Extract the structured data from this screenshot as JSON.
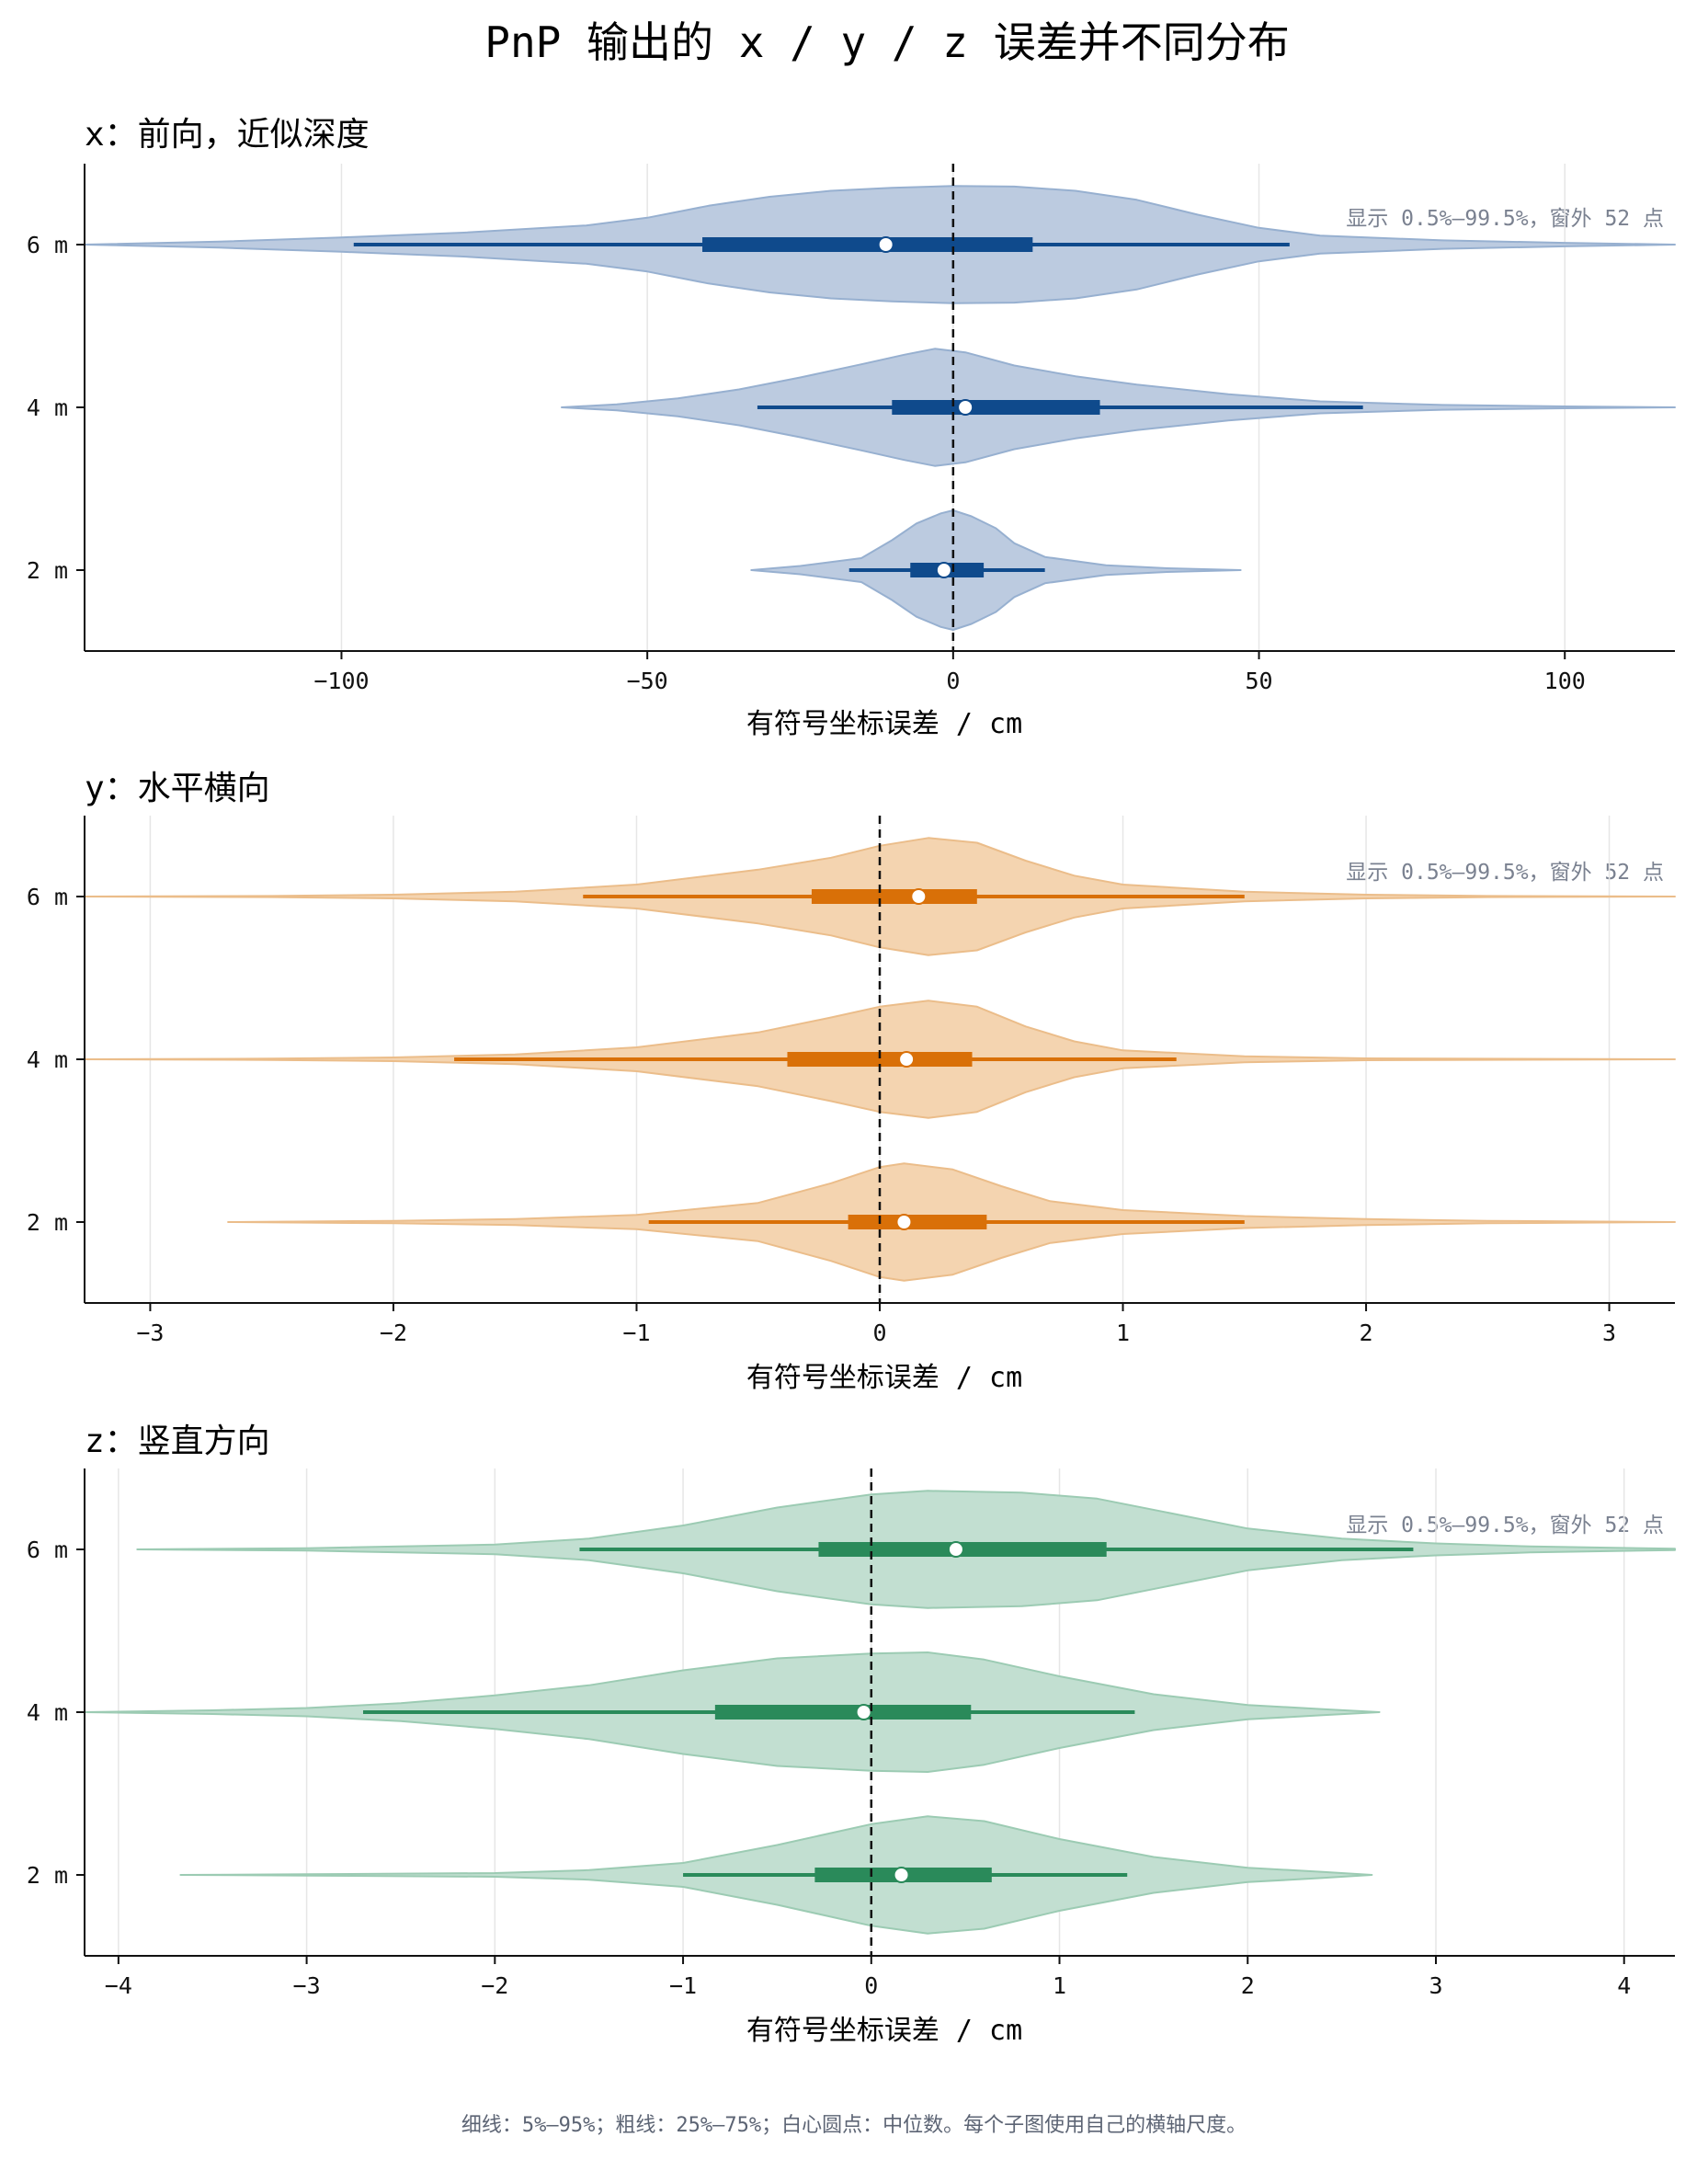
{
  "title": "PnP 输出的 x / y / z 误差并不同分布",
  "footer": "细线：5%–95%；粗线：25%–75%；白心圆点：中位数。每个子图使用自己的横轴尺度。",
  "chart_data": [
    {
      "type": "violin",
      "title": "x：前向，近似深度",
      "xlabel": "有符号坐标误差 / cm",
      "xlim": [
        -142,
        118
      ],
      "xticks": [
        -100,
        -50,
        0,
        50,
        100
      ],
      "xtick_labels": [
        "−100",
        "−50",
        "0",
        "50",
        "100"
      ],
      "categories": [
        "6 m",
        "4 m",
        "2 m"
      ],
      "note": "显示 0.5%–99.5%，窗外 52 点",
      "colors": {
        "fill": "#bccbe0",
        "edge": "#97b0d0",
        "line": "#0f4a8c"
      },
      "grid": true,
      "reference_line": 0,
      "series": [
        {
          "name": "6 m",
          "p5": -98,
          "p25": -41,
          "median": -11,
          "p75": 13,
          "p95": 55,
          "density": [
            [
              -142,
              0.0
            ],
            [
              -120,
              0.05
            ],
            [
              -100,
              0.12
            ],
            [
              -80,
              0.2
            ],
            [
              -60,
              0.32
            ],
            [
              -50,
              0.45
            ],
            [
              -40,
              0.65
            ],
            [
              -30,
              0.8
            ],
            [
              -20,
              0.9
            ],
            [
              -10,
              0.95
            ],
            [
              0,
              0.98
            ],
            [
              10,
              0.97
            ],
            [
              20,
              0.9
            ],
            [
              30,
              0.75
            ],
            [
              40,
              0.5
            ],
            [
              50,
              0.28
            ],
            [
              60,
              0.15
            ],
            [
              80,
              0.07
            ],
            [
              100,
              0.03
            ],
            [
              118,
              0.0
            ]
          ]
        },
        {
          "name": "4 m",
          "p5": -32,
          "p25": -10,
          "median": 2,
          "p75": 24,
          "p95": 67,
          "density": [
            [
              -64,
              0.0
            ],
            [
              -55,
              0.05
            ],
            [
              -45,
              0.15
            ],
            [
              -35,
              0.3
            ],
            [
              -25,
              0.5
            ],
            [
              -15,
              0.72
            ],
            [
              -8,
              0.88
            ],
            [
              -3,
              0.98
            ],
            [
              2,
              0.92
            ],
            [
              10,
              0.7
            ],
            [
              20,
              0.52
            ],
            [
              30,
              0.38
            ],
            [
              45,
              0.22
            ],
            [
              60,
              0.1
            ],
            [
              80,
              0.04
            ],
            [
              100,
              0.015
            ],
            [
              118,
              0.0
            ]
          ]
        },
        {
          "name": "2 m",
          "p5": -17,
          "p25": -7,
          "median": -1.5,
          "p75": 5,
          "p95": 15,
          "density": [
            [
              -33,
              0.0
            ],
            [
              -25,
              0.07
            ],
            [
              -15,
              0.2
            ],
            [
              -10,
              0.5
            ],
            [
              -6,
              0.78
            ],
            [
              -2,
              0.95
            ],
            [
              0,
              1.0
            ],
            [
              3,
              0.9
            ],
            [
              7,
              0.7
            ],
            [
              10,
              0.45
            ],
            [
              15,
              0.22
            ],
            [
              25,
              0.08
            ],
            [
              35,
              0.03
            ],
            [
              47,
              0.0
            ]
          ]
        }
      ]
    },
    {
      "type": "violin",
      "title": "y：水平横向",
      "xlabel": "有符号坐标误差 / cm",
      "xlim": [
        -3.27,
        3.27
      ],
      "xticks": [
        -3,
        -2,
        -1,
        0,
        1,
        2,
        3
      ],
      "xtick_labels": [
        "−3",
        "−2",
        "−1",
        "0",
        "1",
        "2",
        "3"
      ],
      "categories": [
        "6 m",
        "4 m",
        "2 m"
      ],
      "note": "显示 0.5%–99.5%，窗外 52 点",
      "colors": {
        "fill": "#f4d4b0",
        "edge": "#ebbd8a",
        "line": "#d97008"
      },
      "grid": true,
      "reference_line": 0,
      "series": [
        {
          "name": "6 m",
          "p5": -1.22,
          "p25": -0.28,
          "median": 0.16,
          "p75": 0.4,
          "p95": 1.5,
          "density": [
            [
              -3.27,
              0.0
            ],
            [
              -2.5,
              0.01
            ],
            [
              -2.0,
              0.03
            ],
            [
              -1.5,
              0.08
            ],
            [
              -1.0,
              0.2
            ],
            [
              -0.5,
              0.45
            ],
            [
              -0.2,
              0.65
            ],
            [
              0.0,
              0.85
            ],
            [
              0.2,
              0.98
            ],
            [
              0.4,
              0.9
            ],
            [
              0.6,
              0.6
            ],
            [
              0.8,
              0.35
            ],
            [
              1.0,
              0.2
            ],
            [
              1.5,
              0.08
            ],
            [
              2.0,
              0.03
            ],
            [
              2.5,
              0.01
            ],
            [
              3.27,
              0.0
            ]
          ]
        },
        {
          "name": "4 m",
          "p5": -1.75,
          "p25": -0.38,
          "median": 0.11,
          "p75": 0.38,
          "p95": 1.22,
          "density": [
            [
              -3.27,
              0.0
            ],
            [
              -2.5,
              0.01
            ],
            [
              -2.0,
              0.03
            ],
            [
              -1.5,
              0.08
            ],
            [
              -1.0,
              0.2
            ],
            [
              -0.5,
              0.45
            ],
            [
              -0.2,
              0.7
            ],
            [
              0.0,
              0.88
            ],
            [
              0.2,
              0.98
            ],
            [
              0.4,
              0.88
            ],
            [
              0.6,
              0.55
            ],
            [
              0.8,
              0.3
            ],
            [
              1.0,
              0.15
            ],
            [
              1.5,
              0.05
            ],
            [
              2.0,
              0.015
            ],
            [
              3.27,
              0.0
            ]
          ]
        },
        {
          "name": "2 m",
          "p5": -0.95,
          "p25": -0.13,
          "median": 0.1,
          "p75": 0.44,
          "p95": 1.5,
          "density": [
            [
              -2.68,
              0.0
            ],
            [
              -2.0,
              0.02
            ],
            [
              -1.5,
              0.05
            ],
            [
              -1.0,
              0.12
            ],
            [
              -0.5,
              0.32
            ],
            [
              -0.2,
              0.65
            ],
            [
              0.0,
              0.92
            ],
            [
              0.1,
              0.98
            ],
            [
              0.3,
              0.88
            ],
            [
              0.5,
              0.6
            ],
            [
              0.7,
              0.35
            ],
            [
              1.0,
              0.2
            ],
            [
              1.5,
              0.1
            ],
            [
              2.0,
              0.05
            ],
            [
              2.5,
              0.02
            ],
            [
              3.27,
              0.0
            ]
          ]
        }
      ]
    },
    {
      "type": "violin",
      "title": "z：竖直方向",
      "xlabel": "有符号坐标误差 / cm",
      "xlim": [
        -4.18,
        4.27
      ],
      "xticks": [
        -4,
        -3,
        -2,
        -1,
        0,
        1,
        2,
        3,
        4
      ],
      "xtick_labels": [
        "−4",
        "−3",
        "−2",
        "−1",
        "0",
        "1",
        "2",
        "3",
        "4"
      ],
      "categories": [
        "6 m",
        "4 m",
        "2 m"
      ],
      "note": "显示 0.5%–99.5%，窗外 52 点",
      "colors": {
        "fill": "#c2dfd1",
        "edge": "#9ccbb3",
        "line": "#2a8a5a"
      },
      "grid": true,
      "reference_line": 0,
      "series": [
        {
          "name": "6 m",
          "p5": -1.55,
          "p25": -0.28,
          "median": 0.45,
          "p75": 1.25,
          "p95": 2.88,
          "density": [
            [
              -3.9,
              0.0
            ],
            [
              -3.0,
              0.02
            ],
            [
              -2.0,
              0.08
            ],
            [
              -1.5,
              0.18
            ],
            [
              -1.0,
              0.4
            ],
            [
              -0.5,
              0.7
            ],
            [
              0.0,
              0.92
            ],
            [
              0.3,
              0.98
            ],
            [
              0.8,
              0.95
            ],
            [
              1.2,
              0.85
            ],
            [
              1.6,
              0.6
            ],
            [
              2.0,
              0.35
            ],
            [
              2.5,
              0.18
            ],
            [
              3.0,
              0.1
            ],
            [
              3.5,
              0.05
            ],
            [
              4.27,
              0.01
            ]
          ]
        },
        {
          "name": "4 m",
          "p5": -2.7,
          "p25": -0.83,
          "median": -0.04,
          "p75": 0.53,
          "p95": 1.4,
          "density": [
            [
              -4.18,
              0.0
            ],
            [
              -3.5,
              0.03
            ],
            [
              -3.0,
              0.07
            ],
            [
              -2.5,
              0.15
            ],
            [
              -2.0,
              0.28
            ],
            [
              -1.5,
              0.45
            ],
            [
              -1.0,
              0.7
            ],
            [
              -0.5,
              0.9
            ],
            [
              0.0,
              0.98
            ],
            [
              0.3,
              1.0
            ],
            [
              0.6,
              0.88
            ],
            [
              1.0,
              0.6
            ],
            [
              1.5,
              0.3
            ],
            [
              2.0,
              0.12
            ],
            [
              2.4,
              0.05
            ],
            [
              2.7,
              0.0
            ]
          ]
        },
        {
          "name": "2 m",
          "p5": -1.0,
          "p25": -0.3,
          "median": 0.16,
          "p75": 0.64,
          "p95": 1.36,
          "density": [
            [
              -3.67,
              0.0
            ],
            [
              -3.0,
              0.01
            ],
            [
              -2.0,
              0.03
            ],
            [
              -1.5,
              0.08
            ],
            [
              -1.0,
              0.2
            ],
            [
              -0.5,
              0.5
            ],
            [
              0.0,
              0.85
            ],
            [
              0.3,
              0.98
            ],
            [
              0.6,
              0.9
            ],
            [
              1.0,
              0.6
            ],
            [
              1.5,
              0.3
            ],
            [
              2.0,
              0.12
            ],
            [
              2.4,
              0.05
            ],
            [
              2.66,
              0.0
            ]
          ]
        }
      ]
    }
  ]
}
